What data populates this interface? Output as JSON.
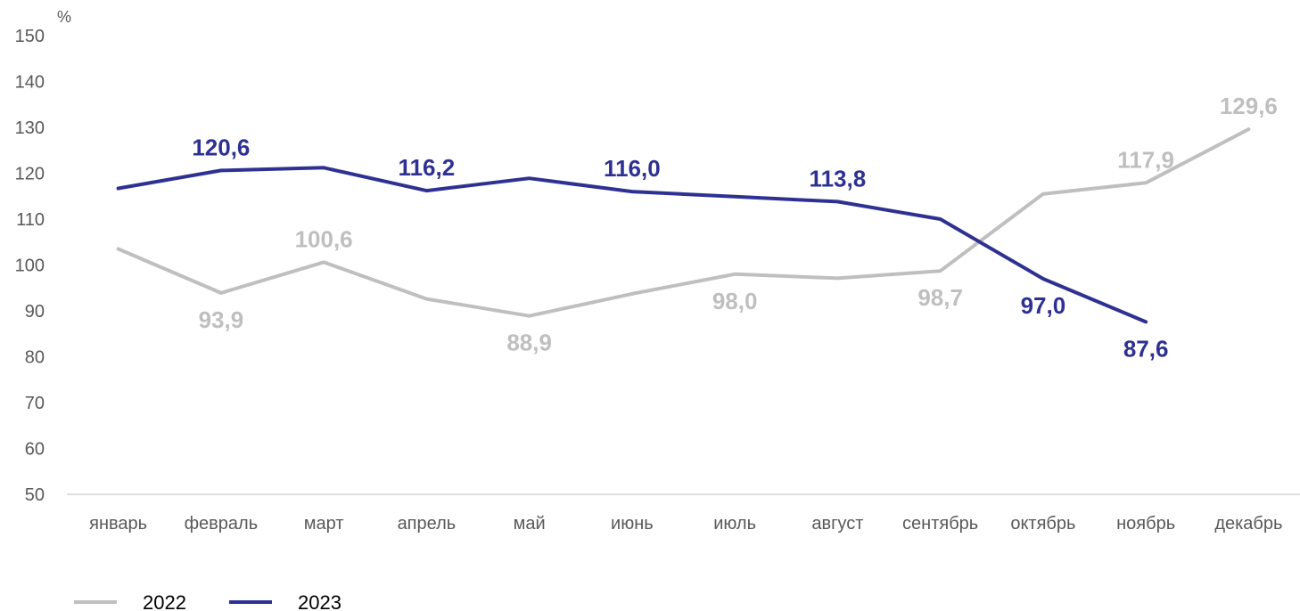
{
  "chart_data": {
    "type": "line",
    "title": "",
    "ylabel": "%",
    "xlabel": "",
    "ylim": [
      50,
      150
    ],
    "yticks": [
      50,
      60,
      70,
      80,
      90,
      100,
      110,
      120,
      130,
      140,
      150
    ],
    "grid": false,
    "legend_position": "bottom-left",
    "categories": [
      "январь",
      "февраль",
      "март",
      "апрель",
      "май",
      "июнь",
      "июль",
      "август",
      "сентябрь",
      "октябрь",
      "ноябрь",
      "декабрь"
    ],
    "series": [
      {
        "name": "2022",
        "color": "#bfbfbf",
        "values": [
          103.5,
          93.9,
          100.6,
          92.6,
          88.9,
          93.7,
          98.0,
          97.1,
          98.7,
          115.5,
          117.9,
          129.6
        ],
        "data_labels": [
          {
            "index": 1,
            "text": "93,9",
            "pos": "below"
          },
          {
            "index": 2,
            "text": "100,6",
            "pos": "above"
          },
          {
            "index": 4,
            "text": "88,9",
            "pos": "below"
          },
          {
            "index": 6,
            "text": "98,0",
            "pos": "below"
          },
          {
            "index": 8,
            "text": "98,7",
            "pos": "below"
          },
          {
            "index": 10,
            "text": "117,9",
            "pos": "above"
          },
          {
            "index": 11,
            "text": "129,6",
            "pos": "above"
          }
        ]
      },
      {
        "name": "2023",
        "color": "#2e3192",
        "values": [
          116.7,
          120.6,
          121.2,
          116.2,
          118.9,
          116.0,
          114.9,
          113.8,
          110.0,
          97.0,
          87.6,
          null
        ],
        "data_labels": [
          {
            "index": 1,
            "text": "120,6",
            "pos": "above"
          },
          {
            "index": 3,
            "text": "116,2",
            "pos": "above"
          },
          {
            "index": 5,
            "text": "116,0",
            "pos": "above"
          },
          {
            "index": 7,
            "text": "113,8",
            "pos": "above"
          },
          {
            "index": 9,
            "text": "97,0",
            "pos": "below"
          },
          {
            "index": 10,
            "text": "87,6",
            "pos": "below"
          }
        ]
      }
    ]
  }
}
